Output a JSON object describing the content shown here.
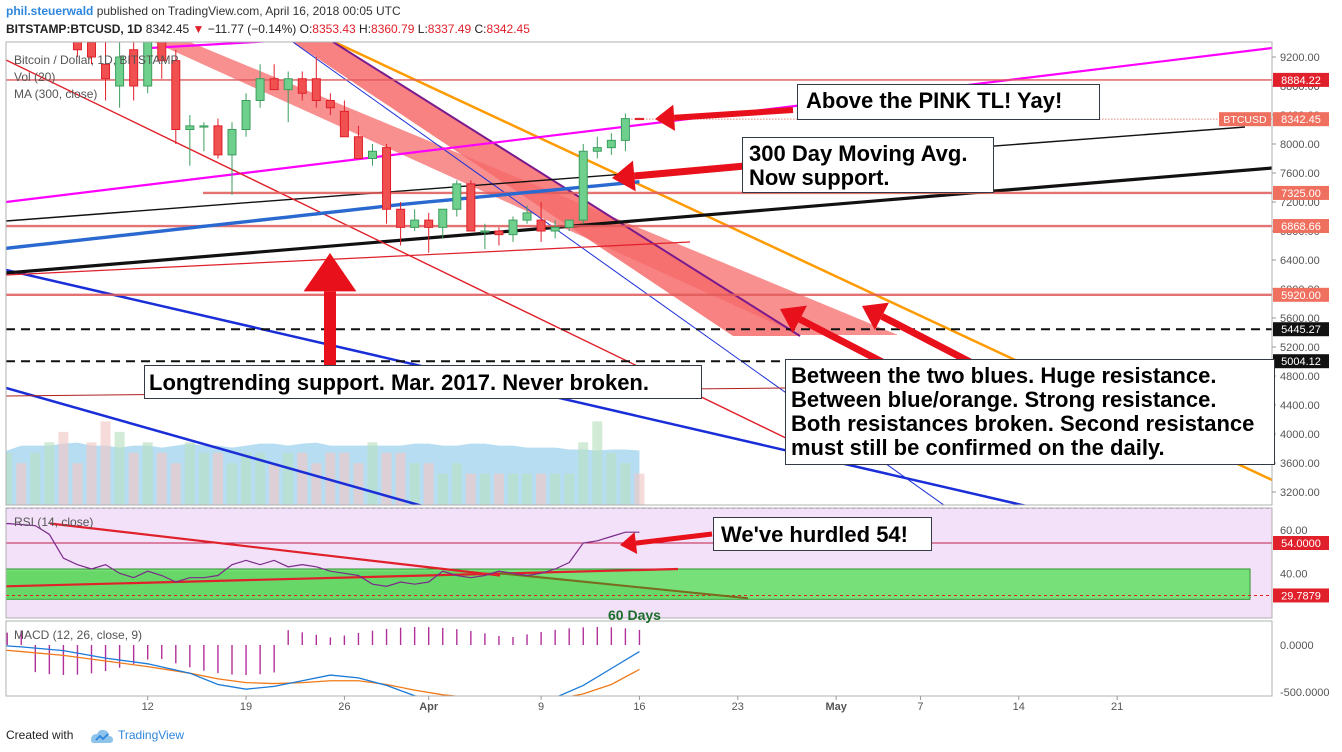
{
  "header": {
    "user": "phil.steuerwald",
    "published": "published on TradingView.com, April 16, 2018 00:05 UTC",
    "symbol": "BITSTAMP:BTCUSD, 1D",
    "last": "8342.45",
    "change_arrow": "▼",
    "change": "−11.77 (−0.14%)",
    "o_label": "O:",
    "o": "8353.43",
    "h_label": "H:",
    "h": "8360.79",
    "l_label": "L:",
    "l": "8337.49",
    "c_label": "C:",
    "c": "8342.45"
  },
  "legend": {
    "title": "Bitcoin / Dollar, 1D, BITSTAMP",
    "vol": "Vol (20)",
    "ma": "MA (300, close)",
    "rsi": "RSI (14, close)",
    "macd": "MACD (12, 26, close, 9)"
  },
  "notes": {
    "pink": "Above the PINK TL! Yay!",
    "ma300": "300 Day Moving Avg.\nNow support.",
    "longtrend": "Longtrending support. Mar. 2017. Never broken.",
    "blues": "Between the two blues. Huge resistance.\nBetween blue/orange. Strong resistance.\nBoth resistances broken. Second resistance\nmust still be confirmed on the daily.",
    "rsi": "We've hurdled 54!",
    "days60": "60 Days"
  },
  "footer": {
    "created": "Created with",
    "brand": "TradingView"
  },
  "colors": {
    "up": "#3c9e5e",
    "down": "#e0202a",
    "pink": "#ff00ff",
    "ma": "#2a6ad0",
    "blue": "#1a2ed8",
    "orange": "#ff9a00",
    "red": "#e0202a",
    "channel": "#f76b6b"
  },
  "chart_data": [
    {
      "type": "candlestick",
      "title": "Bitcoin / Dollar, 1D, BITSTAMP",
      "ylim": [
        2900,
        9600
      ],
      "yticks": [
        3200,
        3600,
        4000,
        4400,
        4800,
        5200,
        5600,
        6000,
        6400,
        6800,
        7200,
        7600,
        8000,
        8400,
        8800,
        9200
      ],
      "yticks_display": [
        "3200.00",
        "3600.00",
        "4000.00",
        "4400.00",
        "4800.00",
        "5200.00",
        "5600.00",
        "6000.00",
        "6400.00",
        "6800.00",
        "7200.00",
        "7600.00",
        "8000.00",
        "8400.00",
        "8800.00",
        "9200.00"
      ],
      "x_tick_labels": [
        {
          "day": 12,
          "label": "12"
        },
        {
          "day": 19,
          "label": "19"
        },
        {
          "day": 26,
          "label": "26"
        },
        {
          "day": 32,
          "label": "Apr"
        },
        {
          "day": 40,
          "label": "9"
        },
        {
          "day": 47,
          "label": "16"
        },
        {
          "day": 54,
          "label": "23"
        },
        {
          "day": 61,
          "label": "May"
        },
        {
          "day": 67,
          "label": "7"
        },
        {
          "day": 74,
          "label": "14"
        },
        {
          "day": 81,
          "label": "21"
        }
      ],
      "day_axis": "day 1 = 1 March 2018",
      "candles": [
        {
          "d": 7,
          "o": 9500,
          "h": 9600,
          "l": 9200,
          "c": 9300
        },
        {
          "d": 8,
          "o": 9400,
          "h": 9600,
          "l": 9100,
          "c": 9200
        },
        {
          "d": 9,
          "o": 9100,
          "h": 9500,
          "l": 8600,
          "c": 8900
        },
        {
          "d": 10,
          "o": 8800,
          "h": 9400,
          "l": 8500,
          "c": 9200
        },
        {
          "d": 11,
          "o": 9300,
          "h": 9500,
          "l": 8600,
          "c": 8800
        },
        {
          "d": 12,
          "o": 8800,
          "h": 9600,
          "l": 8700,
          "c": 9500
        },
        {
          "d": 13,
          "o": 9500,
          "h": 9600,
          "l": 8900,
          "c": 9150
        },
        {
          "d": 14,
          "o": 9150,
          "h": 9300,
          "l": 8000,
          "c": 8200
        },
        {
          "d": 15,
          "o": 8200,
          "h": 8400,
          "l": 7700,
          "c": 8250
        },
        {
          "d": 16,
          "o": 8250,
          "h": 8300,
          "l": 7900,
          "c": 8250
        },
        {
          "d": 17,
          "o": 8250,
          "h": 8350,
          "l": 7800,
          "c": 7850
        },
        {
          "d": 18,
          "o": 7850,
          "h": 8300,
          "l": 7300,
          "c": 8200
        },
        {
          "d": 19,
          "o": 8200,
          "h": 8700,
          "l": 8100,
          "c": 8600
        },
        {
          "d": 20,
          "o": 8600,
          "h": 9100,
          "l": 8500,
          "c": 8900
        },
        {
          "d": 21,
          "o": 8900,
          "h": 9100,
          "l": 8800,
          "c": 8750
        },
        {
          "d": 22,
          "o": 8750,
          "h": 9000,
          "l": 8300,
          "c": 8900
        },
        {
          "d": 23,
          "o": 8900,
          "h": 9000,
          "l": 8600,
          "c": 8700
        },
        {
          "d": 24,
          "o": 8900,
          "h": 9200,
          "l": 8500,
          "c": 8600
        },
        {
          "d": 25,
          "o": 8600,
          "h": 8700,
          "l": 8400,
          "c": 8500
        },
        {
          "d": 26,
          "o": 8450,
          "h": 8600,
          "l": 8100,
          "c": 8100
        },
        {
          "d": 27,
          "o": 8100,
          "h": 8250,
          "l": 7800,
          "c": 7800
        },
        {
          "d": 28,
          "o": 7800,
          "h": 8000,
          "l": 7700,
          "c": 7900
        },
        {
          "d": 29,
          "o": 7950,
          "h": 8000,
          "l": 6900,
          "c": 7100
        },
        {
          "d": 30,
          "o": 7100,
          "h": 7200,
          "l": 6600,
          "c": 6850
        },
        {
          "d": 31,
          "o": 6850,
          "h": 7100,
          "l": 6800,
          "c": 6950
        },
        {
          "d": 32,
          "o": 6950,
          "h": 7050,
          "l": 6500,
          "c": 6850
        },
        {
          "d": 33,
          "o": 6850,
          "h": 7100,
          "l": 6700,
          "c": 7100
        },
        {
          "d": 34,
          "o": 7100,
          "h": 7500,
          "l": 7000,
          "c": 7450
        },
        {
          "d": 35,
          "o": 7450,
          "h": 7500,
          "l": 6800,
          "c": 6800
        },
        {
          "d": 36,
          "o": 6800,
          "h": 6900,
          "l": 6550,
          "c": 6800
        },
        {
          "d": 37,
          "o": 6800,
          "h": 6850,
          "l": 6600,
          "c": 6750
        },
        {
          "d": 38,
          "o": 6750,
          "h": 7000,
          "l": 6650,
          "c": 6950
        },
        {
          "d": 39,
          "o": 6950,
          "h": 7150,
          "l": 6900,
          "c": 7050
        },
        {
          "d": 40,
          "o": 6950,
          "h": 7200,
          "l": 6650,
          "c": 6800
        },
        {
          "d": 41,
          "o": 6800,
          "h": 6950,
          "l": 6700,
          "c": 6850
        },
        {
          "d": 42,
          "o": 6850,
          "h": 6950,
          "l": 6800,
          "c": 6950
        },
        {
          "d": 43,
          "o": 6950,
          "h": 8000,
          "l": 6900,
          "c": 7900
        },
        {
          "d": 44,
          "o": 7900,
          "h": 8100,
          "l": 7800,
          "c": 7950
        },
        {
          "d": 45,
          "o": 7950,
          "h": 8150,
          "l": 7850,
          "c": 8050
        },
        {
          "d": 46,
          "o": 8050,
          "h": 8420,
          "l": 7900,
          "c": 8350
        },
        {
          "d": 47,
          "o": 8353.43,
          "h": 8360.79,
          "l": 8337.49,
          "c": 8342.45
        }
      ],
      "price_labels": [
        {
          "name": "level-8884",
          "value": 8884.22,
          "text": "8884.22",
          "color": "#e0202a"
        },
        {
          "name": "btcusd",
          "value": 8342.45,
          "text": "BTCUSD",
          "text2": "8342.45",
          "color": "#f07060"
        },
        {
          "name": "level-7325",
          "value": 7325.0,
          "text": "7325.00",
          "color": "#f07060"
        },
        {
          "name": "level-6868",
          "value": 6868.66,
          "text": "6868.66",
          "color": "#f07060"
        },
        {
          "name": "level-5920",
          "value": 5920.0,
          "text": "5920.00",
          "color": "#f07060"
        },
        {
          "name": "level-5445",
          "value": 5445.27,
          "text": "5445.27",
          "color": "#111111"
        },
        {
          "name": "level-5004",
          "value": 5004.12,
          "text": "5004.12",
          "color": "#111111"
        }
      ]
    },
    {
      "type": "bar",
      "title": "Vol (20)",
      "note": "volume bars, relative heights; light blue area is 20-day volume average",
      "values": [
        0.2,
        0.4,
        0.3,
        0.5,
        0.7,
        0.5,
        0.6,
        0.9,
        0.6,
        0.6,
        0.5,
        0.6,
        0.5,
        0.4,
        0.5,
        0.6,
        0.4,
        0.5,
        0.5,
        0.6,
        0.6,
        0.5,
        0.4,
        0.6,
        0.8,
        0.5,
        0.4,
        0.5,
        0.5,
        0.4,
        0.5,
        0.6,
        0.7,
        0.4,
        0.6,
        0.8,
        0.7,
        0.5,
        0.6,
        0.5,
        0.4,
        0.6,
        0.5,
        0.5,
        0.4,
        0.5,
        0.5,
        0.4,
        0.5,
        0.5,
        0.4,
        0.5,
        0.5,
        0.4,
        0.6,
        0.5,
        0.5,
        0.4,
        0.4,
        0.3,
        0.4,
        0.3,
        0.3,
        0.3,
        0.3,
        0.3,
        0.3,
        0.3,
        0.3,
        0.6,
        0.8,
        0.5,
        0.4,
        0.3
      ]
    },
    {
      "type": "line",
      "title": "RSI (14, close)",
      "ylim": [
        24,
        72
      ],
      "yticks": [
        40,
        60
      ],
      "yticks_display": [
        "40.00",
        "60.00"
      ],
      "level_labels": [
        {
          "value": 54.0,
          "text": "54.0000",
          "color": "#e0202a"
        },
        {
          "value": 29.7879,
          "text": "29.7879",
          "color": "#e0202a"
        }
      ],
      "rsi": [
        {
          "d": 0,
          "v": 62
        },
        {
          "d": 2,
          "v": 63
        },
        {
          "d": 4,
          "v": 62
        },
        {
          "d": 5,
          "v": 58
        },
        {
          "d": 6,
          "v": 47
        },
        {
          "d": 7,
          "v": 44
        },
        {
          "d": 8,
          "v": 42
        },
        {
          "d": 9,
          "v": 44
        },
        {
          "d": 10,
          "v": 40
        },
        {
          "d": 11,
          "v": 38
        },
        {
          "d": 12,
          "v": 41
        },
        {
          "d": 13,
          "v": 39
        },
        {
          "d": 14,
          "v": 36
        },
        {
          "d": 15,
          "v": 38
        },
        {
          "d": 16,
          "v": 38
        },
        {
          "d": 17,
          "v": 39
        },
        {
          "d": 18,
          "v": 44
        },
        {
          "d": 19,
          "v": 46
        },
        {
          "d": 20,
          "v": 44
        },
        {
          "d": 21,
          "v": 46
        },
        {
          "d": 22,
          "v": 43
        },
        {
          "d": 23,
          "v": 44
        },
        {
          "d": 24,
          "v": 43
        },
        {
          "d": 25,
          "v": 41
        },
        {
          "d": 26,
          "v": 40
        },
        {
          "d": 27,
          "v": 39
        },
        {
          "d": 28,
          "v": 35
        },
        {
          "d": 29,
          "v": 34
        },
        {
          "d": 30,
          "v": 36
        },
        {
          "d": 31,
          "v": 35
        },
        {
          "d": 32,
          "v": 36
        },
        {
          "d": 33,
          "v": 41
        },
        {
          "d": 34,
          "v": 39
        },
        {
          "d": 35,
          "v": 38
        },
        {
          "d": 36,
          "v": 39
        },
        {
          "d": 37,
          "v": 41
        },
        {
          "d": 38,
          "v": 40
        },
        {
          "d": 39,
          "v": 39
        },
        {
          "d": 40,
          "v": 40
        },
        {
          "d": 41,
          "v": 42
        },
        {
          "d": 42,
          "v": 45
        },
        {
          "d": 43,
          "v": 54
        },
        {
          "d": 44,
          "v": 55
        },
        {
          "d": 45,
          "v": 57
        },
        {
          "d": 46,
          "v": 59
        },
        {
          "d": 47,
          "v": 59
        }
      ]
    },
    {
      "type": "line",
      "title": "MACD (12, 26, close, 9)",
      "ylim": [
        -720,
        200
      ],
      "yticks": [
        0,
        -500
      ],
      "yticks_display": [
        "0.0000",
        "-500.0000"
      ],
      "macd": [
        {
          "d": 0,
          "v": 10
        },
        {
          "d": 3,
          "v": -20
        },
        {
          "d": 6,
          "v": -60
        },
        {
          "d": 9,
          "v": -140
        },
        {
          "d": 12,
          "v": -200
        },
        {
          "d": 15,
          "v": -300
        },
        {
          "d": 17,
          "v": -420
        },
        {
          "d": 19,
          "v": -470
        },
        {
          "d": 21,
          "v": -440
        },
        {
          "d": 23,
          "v": -380
        },
        {
          "d": 25,
          "v": -320
        },
        {
          "d": 27,
          "v": -350
        },
        {
          "d": 29,
          "v": -430
        },
        {
          "d": 31,
          "v": -540
        },
        {
          "d": 33,
          "v": -600
        },
        {
          "d": 35,
          "v": -590
        },
        {
          "d": 37,
          "v": -570
        },
        {
          "d": 39,
          "v": -590
        },
        {
          "d": 41,
          "v": -560
        },
        {
          "d": 43,
          "v": -430
        },
        {
          "d": 45,
          "v": -250
        },
        {
          "d": 47,
          "v": -70
        }
      ],
      "signal": [
        {
          "d": 0,
          "v": -30
        },
        {
          "d": 3,
          "v": -70
        },
        {
          "d": 6,
          "v": -110
        },
        {
          "d": 9,
          "v": -170
        },
        {
          "d": 12,
          "v": -230
        },
        {
          "d": 15,
          "v": -300
        },
        {
          "d": 17,
          "v": -360
        },
        {
          "d": 19,
          "v": -400
        },
        {
          "d": 21,
          "v": -410
        },
        {
          "d": 23,
          "v": -400
        },
        {
          "d": 25,
          "v": -380
        },
        {
          "d": 27,
          "v": -380
        },
        {
          "d": 29,
          "v": -420
        },
        {
          "d": 31,
          "v": -480
        },
        {
          "d": 33,
          "v": -530
        },
        {
          "d": 35,
          "v": -560
        },
        {
          "d": 37,
          "v": -570
        },
        {
          "d": 39,
          "v": -580
        },
        {
          "d": 41,
          "v": -580
        },
        {
          "d": 43,
          "v": -520
        },
        {
          "d": 45,
          "v": -420
        },
        {
          "d": 47,
          "v": -260
        }
      ],
      "histogram_sign": [
        1,
        1,
        1,
        1,
        -1,
        -1,
        -1,
        -1,
        -1,
        -1,
        -1,
        -1,
        -1,
        -1,
        -1,
        -1,
        -1,
        -1,
        -1,
        -1,
        -1,
        -1,
        1,
        1,
        1,
        1,
        1,
        1,
        1,
        1,
        1,
        1,
        1,
        1,
        1,
        1,
        1,
        1,
        1,
        1,
        1,
        1,
        1,
        1,
        1,
        1,
        1,
        1
      ]
    }
  ]
}
